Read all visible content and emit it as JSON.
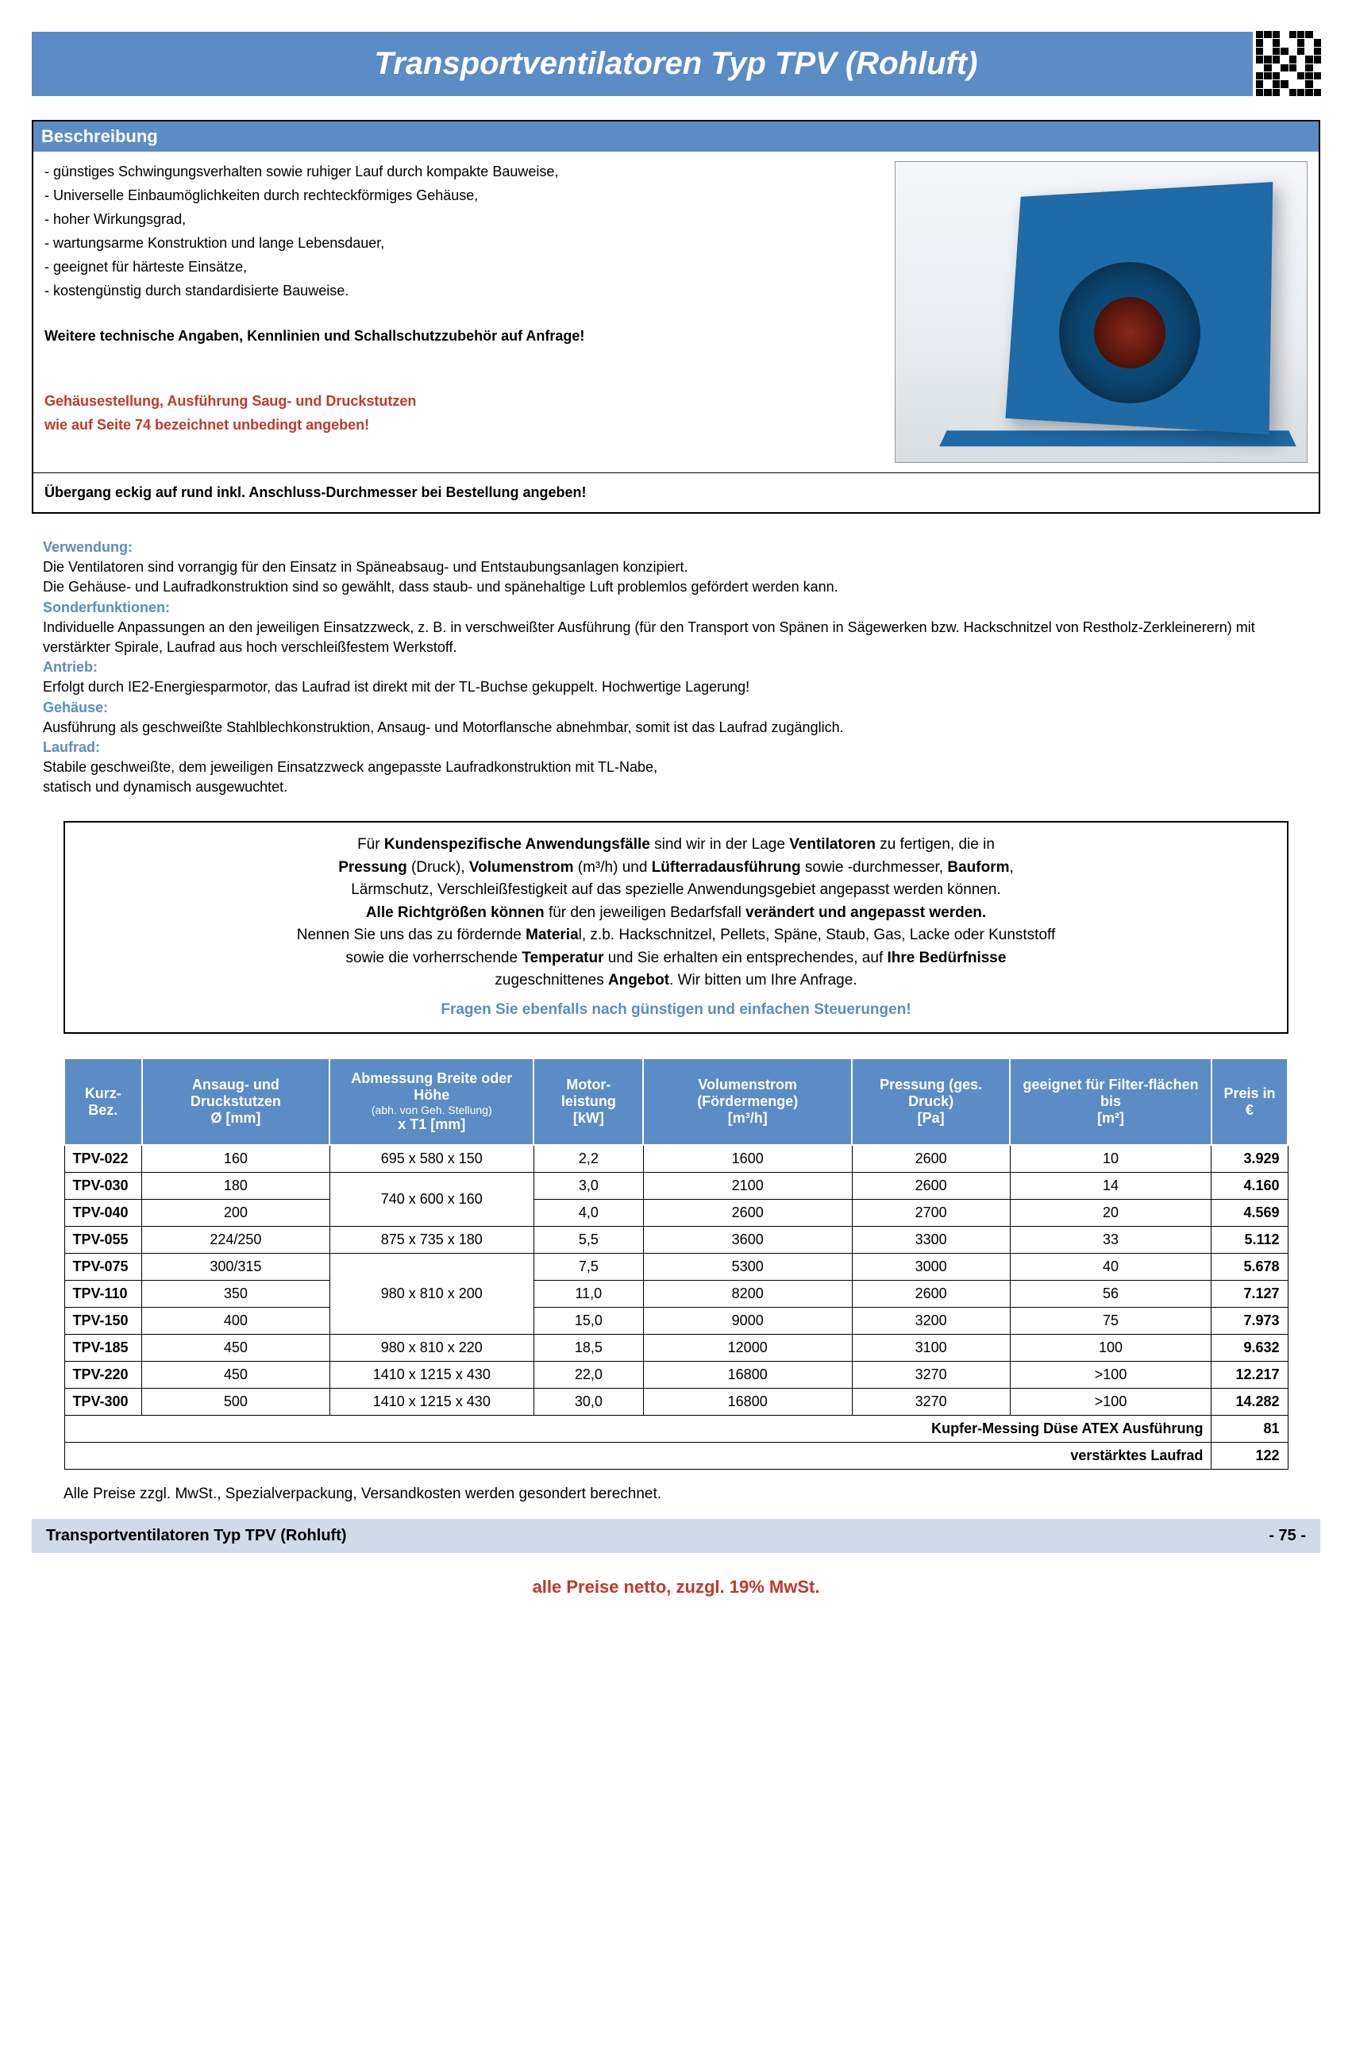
{
  "title": "Transportventilatoren Typ TPV (Rohluft)",
  "sections": {
    "beschreibung": {
      "header": "Beschreibung",
      "bullets": [
        "- günstiges Schwingungsverhalten sowie ruhiger Lauf durch kompakte Bauweise,",
        "- Universelle Einbaumöglichkeiten durch rechteckförmiges Gehäuse,",
        "- hoher Wirkungsgrad,",
        "- wartungsarme Konstruktion und lange Lebensdauer,",
        "- geeignet für härteste Einsätze,",
        "- kostengünstig durch standardisierte Bauweise."
      ],
      "further": "Weitere technische Angaben, Kennlinien und Schallschutzzubehör auf Anfrage!",
      "red1": "Gehäusestellung, Ausführung Saug- und Druckstutzen",
      "red2": "wie auf Seite 74 bezeichnet unbedingt angeben!",
      "order_note": "Übergang eckig auf rund inkl. Anschluss-Durchmesser bei Bestellung angeben!"
    },
    "specs": {
      "verwendung_h": "Verwendung:",
      "verwendung_1": "Die Ventilatoren sind vorrangig für den Einsatz in Späneabsaug- und Entstaubungsanlagen konzipiert.",
      "verwendung_2": "Die Gehäuse- und Laufradkonstruktion sind so gewählt, dass staub- und spänehaltige Luft problemlos gefördert werden kann.",
      "sonder_h": "Sonderfunktionen:",
      "sonder_1": "Individuelle Anpassungen an den jeweiligen Einsatzzweck, z. B. in verschweißter Ausführung (für den Transport von Spänen in Sägewerken bzw. Hackschnitzel von Restholz-Zerkleinerern) mit verstärkter Spirale, Laufrad aus hoch verschleißfestem Werkstoff.",
      "antrieb_h": "Antrieb:",
      "antrieb_1": "Erfolgt durch IE2-Energiesparmotor, das Laufrad ist direkt mit der TL-Buchse gekuppelt. Hochwertige Lagerung!",
      "gehaeuse_h": "Gehäuse:",
      "gehaeuse_1": "Ausführung als geschweißte Stahlblechkonstruktion, Ansaug- und Motorflansche abnehmbar, somit ist das Laufrad zugänglich.",
      "laufrad_h": "Laufrad:",
      "laufrad_1": "Stabile geschweißte, dem jeweiligen Einsatzzweck angepasste Laufradkonstruktion mit TL-Nabe,",
      "laufrad_2": "statisch und dynamisch ausgewuchtet."
    }
  },
  "custom": {
    "l1a": "Für ",
    "l1b": "Kundenspezifische Anwendungsfälle",
    "l1c": " sind wir in der Lage ",
    "l1d": "Ventilatoren",
    "l1e": " zu fertigen, die in",
    "l2a": "Pressung",
    "l2b": " (Druck), ",
    "l2c": "Volumenstrom",
    "l2d": " (m³/h) und ",
    "l2e": "Lüfterradausführung",
    "l2f": " sowie -durchmesser, ",
    "l2g": "Bauform",
    "l2h": ",",
    "l3": "Lärmschutz, Verschleißfestigkeit auf das spezielle Anwendungsgebiet angepasst werden können.",
    "l4a": "Alle Richtgrößen können",
    "l4b": " für den jeweiligen Bedarfsfall ",
    "l4c": "verändert und angepasst werden.",
    "l5a": "Nennen Sie uns das zu fördernde ",
    "l5b": "Materia",
    "l5c": "l, z.b. Hackschnitzel, Pellets, Späne, Staub, Gas, Lacke oder Kunststoff",
    "l6a": "sowie die vorherrschende ",
    "l6b": "Temperatur",
    "l6c": " und Sie erhalten ein entsprechendes, auf ",
    "l6d": "Ihre Bedürfnisse",
    "l7a": "zugeschnittenes ",
    "l7b": "Angebot",
    "l7c": ". Wir bitten um Ihre Anfrage.",
    "cta_a": "Fragen Sie ebenfalls nach ",
    "cta_b": "günstigen",
    "cta_c": " und ",
    "cta_d": "einfachen Steuerungen",
    "cta_e": "!"
  },
  "table": {
    "headers": {
      "kurz": "Kurz-Bez.",
      "ansaug1": "Ansaug- und Druckstutzen",
      "ansaug2": "Ø [mm]",
      "abm1": "Abmessung Breite oder Höhe",
      "abm2": "(abh. von Geh. Stellung)",
      "abm3": "x T1 [mm]",
      "motor1": "Motor-leistung",
      "motor2": "[kW]",
      "vol1": "Volumenstrom (Fördermenge)",
      "vol2": "[m³/h]",
      "press1": "Pressung (ges. Druck)",
      "press2": "[Pa]",
      "filter1": "geeignet für Filter-flächen bis",
      "filter2": "[m²]",
      "preis": "Preis in €"
    },
    "rows": [
      {
        "bez": "TPV-022",
        "d": "160",
        "abm": "695 x 580 x 150",
        "kw": "2,2",
        "vol": "1600",
        "pa": "2600",
        "filt": "10",
        "preis": "3.929"
      },
      {
        "bez": "TPV-030",
        "d": "180",
        "abm": "740 x 600 x 160",
        "kw": "3,0",
        "vol": "2100",
        "pa": "2600",
        "filt": "14",
        "preis": "4.160",
        "abm_rowspan": 2
      },
      {
        "bez": "TPV-040",
        "d": "200",
        "kw": "4,0",
        "vol": "2600",
        "pa": "2700",
        "filt": "20",
        "preis": "4.569"
      },
      {
        "bez": "TPV-055",
        "d": "224/250",
        "abm": "875 x 735 x 180",
        "kw": "5,5",
        "vol": "3600",
        "pa": "3300",
        "filt": "33",
        "preis": "5.112"
      },
      {
        "bez": "TPV-075",
        "d": "300/315",
        "abm": "980 x 810 x 200",
        "kw": "7,5",
        "vol": "5300",
        "pa": "3000",
        "filt": "40",
        "preis": "5.678",
        "abm_rowspan": 3
      },
      {
        "bez": "TPV-110",
        "d": "350",
        "kw": "11,0",
        "vol": "8200",
        "pa": "2600",
        "filt": "56",
        "preis": "7.127"
      },
      {
        "bez": "TPV-150",
        "d": "400",
        "kw": "15,0",
        "vol": "9000",
        "pa": "3200",
        "filt": "75",
        "preis": "7.973"
      },
      {
        "bez": "TPV-185",
        "d": "450",
        "abm": "980 x 810 x 220",
        "kw": "18,5",
        "vol": "12000",
        "pa": "3100",
        "filt": "100",
        "preis": "9.632"
      },
      {
        "bez": "TPV-220",
        "d": "450",
        "abm": "1410 x 1215 x 430",
        "kw": "22,0",
        "vol": "16800",
        "pa": "3270",
        "filt": ">100",
        "preis": "12.217"
      },
      {
        "bez": "TPV-300",
        "d": "500",
        "abm": "1410 x 1215 x 430",
        "kw": "30,0",
        "vol": "16800",
        "pa": "3270",
        "filt": ">100",
        "preis": "14.282"
      }
    ],
    "addons": [
      {
        "label": "Kupfer-Messing Düse ATEX Ausführung",
        "preis": "81"
      },
      {
        "label": "verstärktes Laufrad",
        "preis": "122"
      }
    ]
  },
  "footnote": "Alle Preise zzgl. MwSt., Spezialverpackung, Versandkosten werden gesondert berechnet.",
  "footer": {
    "left": "Transportventilatoren Typ TPV (Rohluft)",
    "right": "- 75 -"
  },
  "vat": "alle Preise netto, zuzgl. 19% MwSt."
}
